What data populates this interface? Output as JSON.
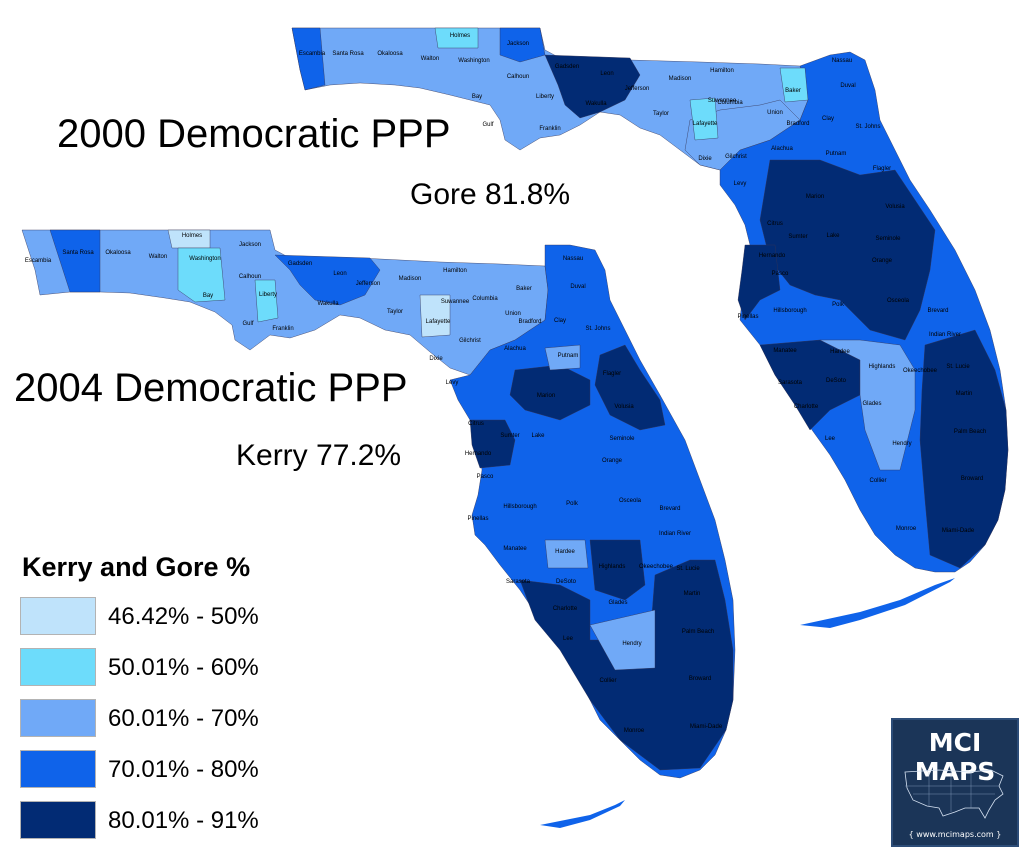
{
  "maps": [
    {
      "id": "fl2000",
      "title": "2000 Democratic PPP",
      "result": "Gore 81.8%"
    },
    {
      "id": "fl2004",
      "title": "2004 Democratic PPP",
      "result": "Kerry 77.2%"
    }
  ],
  "legend": {
    "title": "Kerry and Gore %",
    "bins": [
      {
        "label": "46.42% - 50%",
        "color": "#bfe3fb"
      },
      {
        "label": "50.01% - 60%",
        "color": "#6ddcfb"
      },
      {
        "label": "60.01% - 70%",
        "color": "#70a9f7"
      },
      {
        "label": "70.01% - 80%",
        "color": "#0f63ea"
      },
      {
        "label": "80.01% - 91%",
        "color": "#022b74"
      }
    ]
  },
  "county_labels_2000": [
    "Escambia",
    "Santa Rosa",
    "Okaloosa",
    "Walton",
    "Holmes",
    "Washington",
    "Jackson",
    "Calhoun",
    "Bay",
    "Gulf",
    "Liberty",
    "Franklin",
    "Gadsden",
    "Leon",
    "Wakulla",
    "Jefferson",
    "Madison",
    "Hamilton",
    "Taylor",
    "Suwannee",
    "Lafayette",
    "Columbia",
    "Baker",
    "Nassau",
    "Duval",
    "Union",
    "Bradford",
    "Clay",
    "St. Johns",
    "Dixie",
    "Gilchrist",
    "Alachua",
    "Putnam",
    "Flagler",
    "Levy",
    "Marion",
    "Volusia",
    "Citrus",
    "Sumter",
    "Lake",
    "Seminole",
    "Hernando",
    "Pasco",
    "Orange",
    "Osceola",
    "Brevard",
    "Pinellas",
    "Hillsborough",
    "Polk",
    "Indian River",
    "Manatee",
    "Hardee",
    "Highlands",
    "Okeechobee",
    "St. Lucie",
    "Sarasota",
    "DeSoto",
    "Martin",
    "Charlotte",
    "Glades",
    "Palm Beach",
    "Lee",
    "Hendry",
    "Broward",
    "Collier",
    "Monroe",
    "Miami-Dade"
  ],
  "county_labels_2004": [
    "Escambia",
    "Santa Rosa",
    "Okaloosa",
    "Walton",
    "Holmes",
    "Washington",
    "Jackson",
    "Calhoun",
    "Bay",
    "Gulf",
    "Liberty",
    "Franklin",
    "Gadsden",
    "Leon",
    "Wakulla",
    "Jefferson",
    "Madison",
    "Hamilton",
    "Taylor",
    "Suwannee",
    "Lafayette",
    "Columbia",
    "Baker",
    "Nassau",
    "Duval",
    "Union",
    "Bradford",
    "Clay",
    "St. Johns",
    "Dixie",
    "Gilchrist",
    "Alachua",
    "Putnam",
    "Flagler",
    "Levy",
    "Marion",
    "Volusia",
    "Citrus",
    "Sumter",
    "Lake",
    "Seminole",
    "Hernando",
    "Pasco",
    "Orange",
    "Osceola",
    "Brevard",
    "Pinellas",
    "Hillsborough",
    "Polk",
    "Indian River",
    "Manatee",
    "Hardee",
    "Highlands",
    "Okeechobee",
    "St. Lucie",
    "Sarasota",
    "DeSoto",
    "Martin",
    "Charlotte",
    "Glades",
    "Palm Beach",
    "Lee",
    "Hendry",
    "Broward",
    "Collier",
    "Monroe",
    "Miami-Dade"
  ],
  "badge": {
    "name": "MCI MAPS",
    "url": "{ www.mcimaps.com }"
  }
}
